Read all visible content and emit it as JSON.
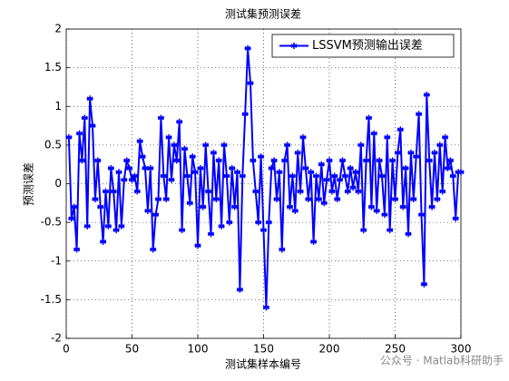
{
  "chart_data": {
    "type": "line",
    "title": "测试集预测误差",
    "xlabel": "测试集样本编号",
    "ylabel": "预测误差",
    "annotation": "公众号 · Matlab科研助手",
    "legend": "upper right",
    "grid": true,
    "xlim": [
      0,
      300
    ],
    "xticks": [
      0,
      50,
      100,
      150,
      200,
      250,
      300
    ],
    "ylim": [
      -2,
      2
    ],
    "yticks": [
      -2,
      -1.5,
      -1,
      -0.5,
      0,
      0.5,
      1,
      1.5,
      2
    ],
    "x": [
      2,
      4,
      6,
      8,
      10,
      12,
      14,
      16,
      18,
      20,
      22,
      24,
      26,
      28,
      30,
      32,
      34,
      36,
      38,
      40,
      42,
      44,
      46,
      48,
      50,
      52,
      54,
      56,
      58,
      60,
      62,
      64,
      66,
      68,
      70,
      72,
      74,
      76,
      78,
      80,
      82,
      84,
      86,
      88,
      90,
      92,
      94,
      96,
      98,
      100,
      102,
      104,
      106,
      108,
      110,
      112,
      114,
      116,
      118,
      120,
      122,
      124,
      126,
      128,
      130,
      132,
      134,
      136,
      138,
      140,
      142,
      144,
      146,
      148,
      150,
      152,
      154,
      156,
      158,
      160,
      162,
      164,
      166,
      168,
      170,
      172,
      174,
      176,
      178,
      180,
      182,
      184,
      186,
      188,
      190,
      192,
      194,
      196,
      198,
      200,
      202,
      204,
      206,
      208,
      210,
      212,
      214,
      216,
      218,
      220,
      222,
      224,
      226,
      228,
      230,
      232,
      234,
      236,
      238,
      240,
      242,
      244,
      246,
      248,
      250,
      252,
      254,
      256,
      258,
      260,
      262,
      264,
      266,
      268,
      270,
      272,
      274,
      276,
      278,
      280,
      282,
      284,
      286,
      288,
      290,
      292,
      294,
      296,
      298,
      300
    ],
    "series": [
      {
        "name": "LSSVM预测输出误差",
        "color": "#0000ff",
        "values": [
          0.6,
          -0.45,
          -0.3,
          -0.85,
          0.65,
          0.3,
          0.85,
          -0.55,
          1.1,
          0.75,
          -0.2,
          0.3,
          -0.3,
          -0.75,
          -0.1,
          -0.55,
          0.2,
          -0.1,
          -0.6,
          0.15,
          -0.55,
          0.05,
          0.3,
          0.2,
          0.05,
          0.1,
          -0.1,
          0.55,
          0.35,
          0.2,
          -0.35,
          0.2,
          -0.85,
          -0.4,
          -0.2,
          0.85,
          0.1,
          -0.2,
          0.6,
          0.05,
          0.5,
          0.3,
          0.8,
          -0.6,
          0.45,
          0.1,
          -0.25,
          0.35,
          0.15,
          -0.8,
          0.2,
          -0.3,
          0.5,
          -0.1,
          -0.65,
          0.4,
          -0.2,
          0.3,
          -0.55,
          0.5,
          0.1,
          -0.5,
          0.2,
          -0.3,
          0.15,
          -1.37,
          0.1,
          0.9,
          1.75,
          1.3,
          0.3,
          -0.1,
          -0.5,
          0.35,
          -0.6,
          -1.6,
          -0.5,
          0.2,
          0.3,
          -0.2,
          0.15,
          -0.85,
          0.3,
          0.5,
          -0.3,
          0.1,
          -0.35,
          0.4,
          -0.1,
          0.6,
          0.2,
          -0.2,
          0.15,
          -0.75,
          0.1,
          -0.2,
          0.25,
          -0.25,
          0.05,
          0.3,
          -0.1,
          0.1,
          -0.2,
          0.05,
          0.3,
          0.1,
          -0.1,
          0.2,
          -0.05,
          0.15,
          -0.1,
          0.5,
          -0.6,
          0.3,
          0.85,
          -0.3,
          0.65,
          -0.35,
          0.3,
          0.1,
          -0.4,
          0.6,
          -0.6,
          0.3,
          -0.2,
          0.4,
          0.7,
          -0.3,
          0.2,
          -0.65,
          0.4,
          -0.2,
          0.35,
          0.9,
          -0.4,
          -1.3,
          1.15,
          0.3,
          -0.3,
          0.4,
          -0.2,
          0.5,
          -0.1,
          0.6,
          0.2,
          0.3,
          0.1,
          -0.45,
          0.15,
          0.15
        ]
      }
    ]
  }
}
